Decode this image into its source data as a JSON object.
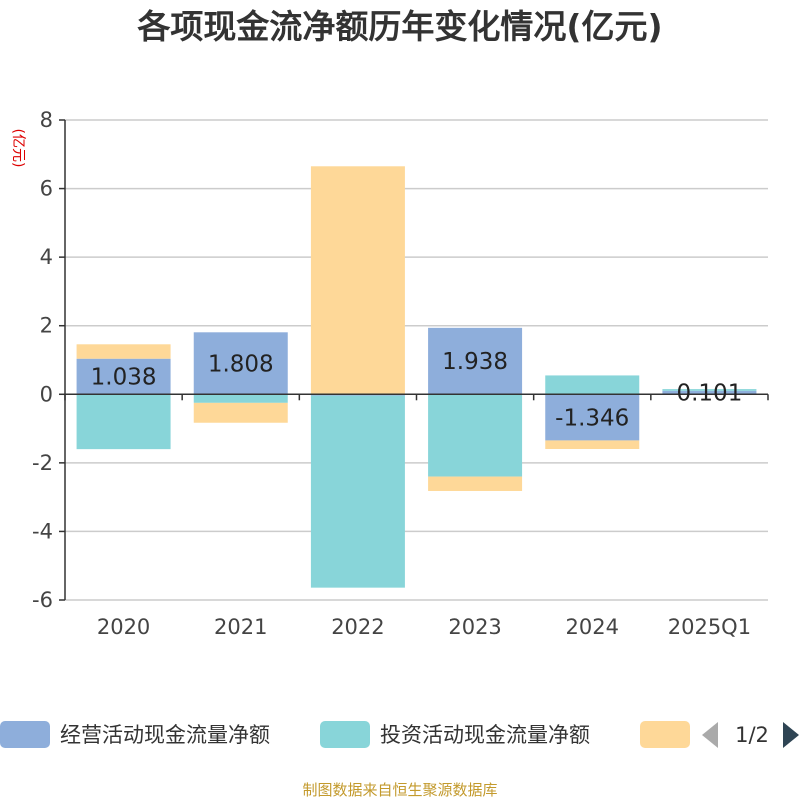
{
  "chart_data": {
    "type": "bar",
    "stacked": true,
    "title": "各项现金流净额历年变化情况(亿元)",
    "unit_label": "(亿元)",
    "categories": [
      "2020",
      "2021",
      "2022",
      "2023",
      "2024",
      "2025Q1"
    ],
    "ylim": [
      -6,
      8
    ],
    "yticks": [
      8,
      6,
      4,
      2,
      0,
      -2,
      -4,
      -6
    ],
    "grid": true,
    "legend_position": "bottom",
    "series": [
      {
        "name": "经营活动现金流量净额",
        "color": "#8eaedb",
        "values": [
          1.038,
          1.808,
          -0.04,
          1.938,
          -1.346,
          0.101
        ],
        "labels": [
          "1.038",
          "1.808",
          "",
          "1.938",
          "-1.346",
          "0.101"
        ]
      },
      {
        "name": "投资活动现金流量净额",
        "color": "#88d5d9",
        "values": [
          -1.6,
          -0.25,
          -5.6,
          -2.4,
          0.55,
          0.05
        ]
      },
      {
        "name": "",
        "color": "#fed898",
        "values": [
          0.42,
          -0.58,
          6.65,
          -0.42,
          -0.25,
          0.0
        ]
      }
    ],
    "legend_page": "1/2"
  },
  "source": "制图数据来自恒生聚源数据库",
  "colors": {
    "axis": "#333333",
    "grid": "#cccccc",
    "pager_active": "#2f4554",
    "pager_inactive": "#aaaaaa"
  }
}
